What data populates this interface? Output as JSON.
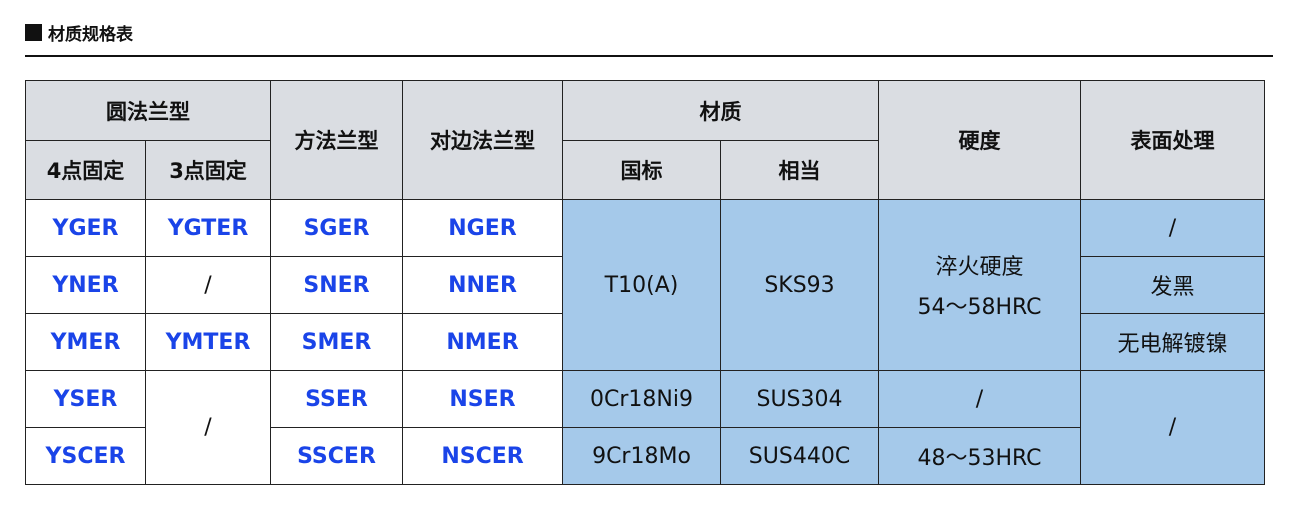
{
  "title": "材质规格表",
  "colors": {
    "header_bg": "#dadde2",
    "material_bg": "#a5c9ea",
    "code_text": "#1a44e8"
  },
  "headers": {
    "round_flange": "圆法兰型",
    "four_point": "4点固定",
    "three_point": "3点固定",
    "square_flange": "方法兰型",
    "opposite_flange": "对边法兰型",
    "material": "材质",
    "national": "国标",
    "equivalent": "相当",
    "hardness": "硬度",
    "surface": "表面处理"
  },
  "rows": [
    {
      "four": "YGER",
      "three": "YGTER",
      "square": "SGER",
      "opposite": "NGER",
      "surface": "/"
    },
    {
      "four": "YNER",
      "three": "/",
      "square": "SNER",
      "opposite": "NNER",
      "surface": "发黑"
    },
    {
      "four": "YMER",
      "three": "YMTER",
      "square": "SMER",
      "opposite": "NMER",
      "surface": "无电解镀镍"
    },
    {
      "four": "YSER",
      "three": "/",
      "square": "SSER",
      "opposite": "NSER",
      "national": "0Cr18Ni9",
      "equivalent": "SUS304",
      "hardness": "/",
      "surface": "/"
    },
    {
      "four": "YSCER",
      "square": "SSCER",
      "opposite": "NSCER",
      "national": "9Cr18Mo",
      "equivalent": "SUS440C",
      "hardness": "48～53HRC"
    }
  ],
  "merged": {
    "national": "T10(A)",
    "equivalent": "SKS93",
    "hardness_line1": "淬火硬度",
    "hardness_line2": "54～58HRC"
  }
}
